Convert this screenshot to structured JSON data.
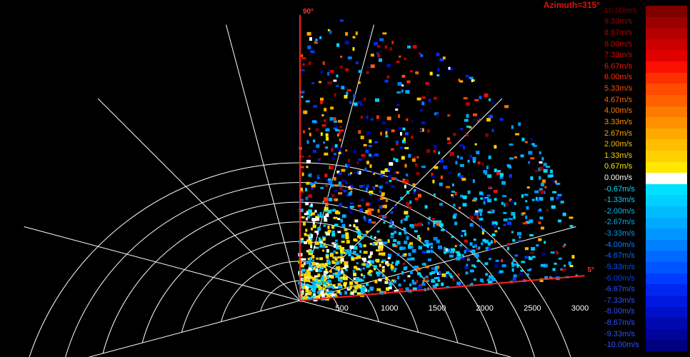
{
  "window": {
    "title": "Azimuth=315°"
  },
  "chart_data": {
    "type": "heatmap",
    "coordinate_system": "polar",
    "title": "Azimuth=315°",
    "range_ticks": [
      "500",
      "1000",
      "1500",
      "2000",
      "2500",
      "3000"
    ],
    "range_max": 3000,
    "elevation_labels": [
      "90°",
      "5°"
    ],
    "elevation_range": [
      5,
      90
    ],
    "legend": {
      "placement": "right",
      "unit": "m/s",
      "entries": [
        {
          "label": "10.00m/s",
          "color": "#800000"
        },
        {
          "label": "9.33m/s",
          "color": "#9a0000"
        },
        {
          "label": "8.67m/s",
          "color": "#b40000"
        },
        {
          "label": "8.00m/s",
          "color": "#cc0000"
        },
        {
          "label": "7.33m/s",
          "color": "#e00000"
        },
        {
          "label": "6.67m/s",
          "color": "#f81000"
        },
        {
          "label": "6.00m/s",
          "color": "#ff3000"
        },
        {
          "label": "5.33m/s",
          "color": "#ff4c00"
        },
        {
          "label": "4.67m/s",
          "color": "#ff6000"
        },
        {
          "label": "4.00m/s",
          "color": "#ff7a00"
        },
        {
          "label": "3.33m/s",
          "color": "#ff9000"
        },
        {
          "label": "2.67m/s",
          "color": "#ffa800"
        },
        {
          "label": "2.00m/s",
          "color": "#ffbc00"
        },
        {
          "label": "1.33m/s",
          "color": "#ffd000"
        },
        {
          "label": "0.67m/s",
          "color": "#ffe800"
        },
        {
          "label": "0.00m/s",
          "color": "#ffffff"
        },
        {
          "label": "-0.67m/s",
          "color": "#00e0ff"
        },
        {
          "label": "-1.33m/s",
          "color": "#00d0ff"
        },
        {
          "label": "-2.00m/s",
          "color": "#00bcff"
        },
        {
          "label": "-2.67m/s",
          "color": "#00aaff"
        },
        {
          "label": "-3.33m/s",
          "color": "#0096ff"
        },
        {
          "label": "-4.00m/s",
          "color": "#0080ff"
        },
        {
          "label": "-4.67m/s",
          "color": "#006aff"
        },
        {
          "label": "-5.33m/s",
          "color": "#0054ff"
        },
        {
          "label": "-6.00m/s",
          "color": "#003cff"
        },
        {
          "label": "-6.67m/s",
          "color": "#0028f0"
        },
        {
          "label": "-7.33m/s",
          "color": "#0018e0"
        },
        {
          "label": "-8.00m/s",
          "color": "#0010c8"
        },
        {
          "label": "-8.67m/s",
          "color": "#0008b0"
        },
        {
          "label": "-9.33m/s",
          "color": "#00049a"
        },
        {
          "label": "-10.00m/s",
          "color": "#000080"
        }
      ]
    }
  }
}
